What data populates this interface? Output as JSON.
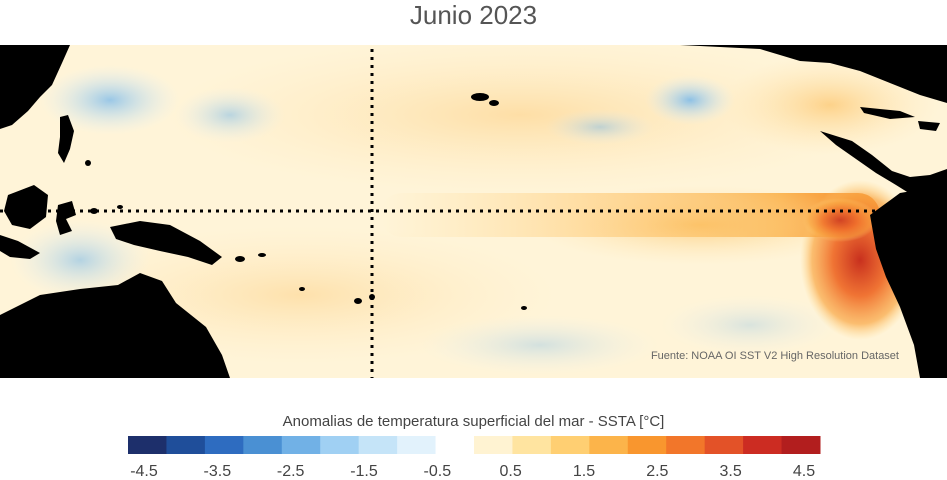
{
  "title": "Junio 2023",
  "source": "Fuente: NOAA OI SST V2 High Resolution Dataset",
  "colorbar": {
    "title": "Anomalias de temperatura superficial del mar - SSTA  [°C]",
    "tick_labels": [
      "-4.5",
      "-3.5",
      "-2.5",
      "-1.5",
      "-0.5",
      "0.5",
      "1.5",
      "2.5",
      "3.5",
      "4.5"
    ],
    "colors": [
      "#1d2f6b",
      "#1f4e9a",
      "#2e6cc0",
      "#4a90d3",
      "#71b1e6",
      "#a0d0f3",
      "#c5e4f8",
      "#e2f2fc",
      "#ffffff",
      "#fff3d2",
      "#ffe4a0",
      "#ffcf72",
      "#fcb44a",
      "#f9962e",
      "#f2762a",
      "#e35228",
      "#cc2c22",
      "#b21e1e"
    ]
  },
  "map": {
    "land_color": "#000000",
    "guide_lines": [
      "equator",
      "dateline"
    ]
  }
}
